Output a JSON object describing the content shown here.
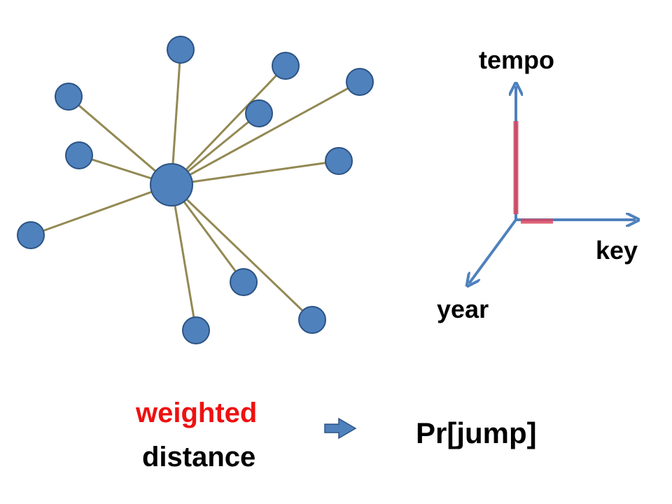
{
  "colors": {
    "node_fill": "#4f81bd",
    "node_stroke": "#2c5384",
    "edge": "#938953",
    "axis": "#4f81bd",
    "highlight": "#d9485f",
    "weighted_text": "#ee1111",
    "text": "#000000"
  },
  "axes": {
    "tempo_label": "tempo",
    "key_label": "key",
    "year_label": "year"
  },
  "formula": {
    "weighted": "weighted",
    "distance": "distance",
    "result": "Pr[jump]",
    "arrow_icon": "right-arrow-icon"
  }
}
